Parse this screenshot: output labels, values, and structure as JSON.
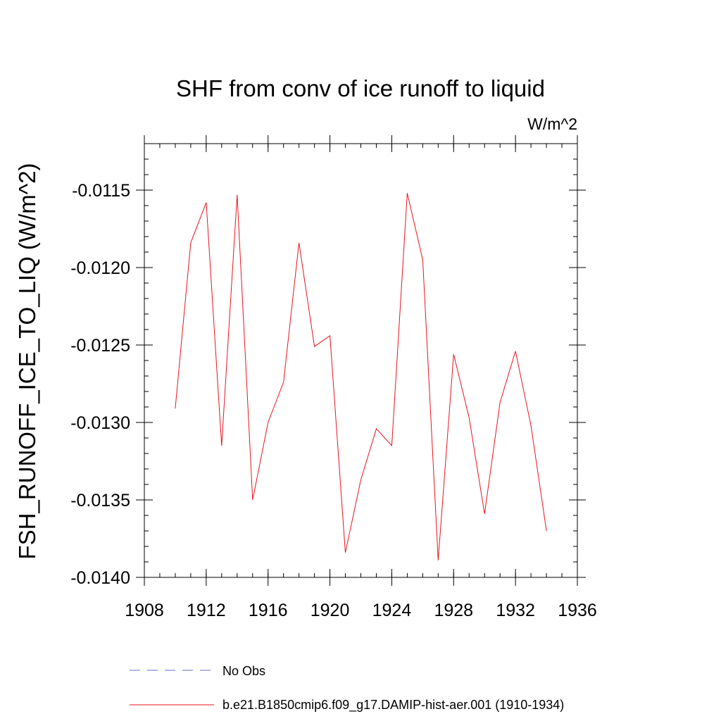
{
  "chart_data": {
    "type": "line",
    "title": "SHF from conv of ice runoff to liquid",
    "units_label": "W/m^2",
    "ylabel": "FSH_RUNOFF_ICE_TO_LIQ  (W/m^2)",
    "xlabel": "",
    "xlim": [
      1908,
      1936
    ],
    "ylim": [
      -0.014,
      -0.0112
    ],
    "x_ticks": [
      1908,
      1912,
      1916,
      1920,
      1924,
      1928,
      1932,
      1936
    ],
    "x_tick_labels": [
      "1908",
      "1912",
      "1916",
      "1920",
      "1924",
      "1928",
      "1932",
      "1936"
    ],
    "y_ticks": [
      -0.0115,
      -0.012,
      -0.0125,
      -0.013,
      -0.0135,
      -0.014
    ],
    "y_tick_labels": [
      "-0.0115",
      "-0.0120",
      "-0.0125",
      "-0.0130",
      "-0.0135",
      "-0.0140"
    ],
    "grid": false,
    "legend_position": "bottom",
    "legend": [
      {
        "label": "No Obs",
        "color": "#6a6ac8",
        "style": "dashed"
      },
      {
        "label": "b.e21.B1850cmip6.f09_g17.DAMIP-hist-aer.001 (1910-1934)",
        "color": "#e8141e",
        "style": "solid"
      }
    ],
    "series": [
      {
        "color": "#e8141e",
        "x": [
          1910,
          1911,
          1912,
          1913,
          1914,
          1915,
          1916,
          1917,
          1918,
          1919,
          1920,
          1921,
          1922,
          1923,
          1924,
          1925,
          1926,
          1927,
          1928,
          1929,
          1930,
          1931,
          1932,
          1933,
          1934
        ],
        "y": [
          -0.01291,
          -0.01184,
          -0.01158,
          -0.01315,
          -0.01153,
          -0.0135,
          -0.013,
          -0.01274,
          -0.01184,
          -0.01251,
          -0.01244,
          -0.01384,
          -0.01337,
          -0.01304,
          -0.01315,
          -0.01152,
          -0.01195,
          -0.01389,
          -0.01256,
          -0.01297,
          -0.01359,
          -0.01287,
          -0.01254,
          -0.01302,
          -0.0137
        ]
      }
    ]
  }
}
